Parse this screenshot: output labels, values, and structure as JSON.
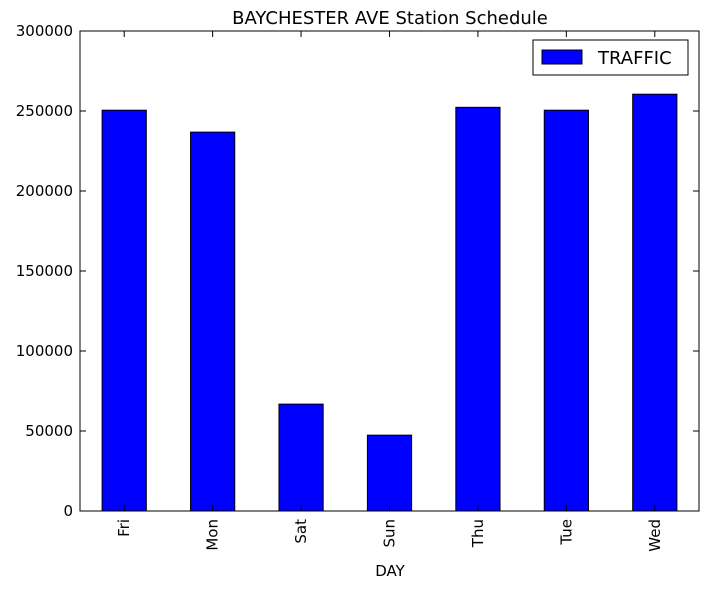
{
  "chart_data": {
    "type": "bar",
    "title": "BAYCHESTER AVE Station Schedule",
    "xlabel": "DAY",
    "ylabel": "",
    "categories": [
      "Fri",
      "Mon",
      "Sat",
      "Sun",
      "Thu",
      "Tue",
      "Wed"
    ],
    "series": [
      {
        "name": "TRAFFIC",
        "values": [
          250500,
          236800,
          66800,
          47400,
          252300,
          250500,
          260500
        ],
        "color": "#0000ff"
      }
    ],
    "ylim": [
      0,
      300000
    ],
    "yticks": [
      "0",
      "50000",
      "100000",
      "150000",
      "200000",
      "250000",
      "300000"
    ],
    "grid": false,
    "legend_position": "top-right"
  }
}
